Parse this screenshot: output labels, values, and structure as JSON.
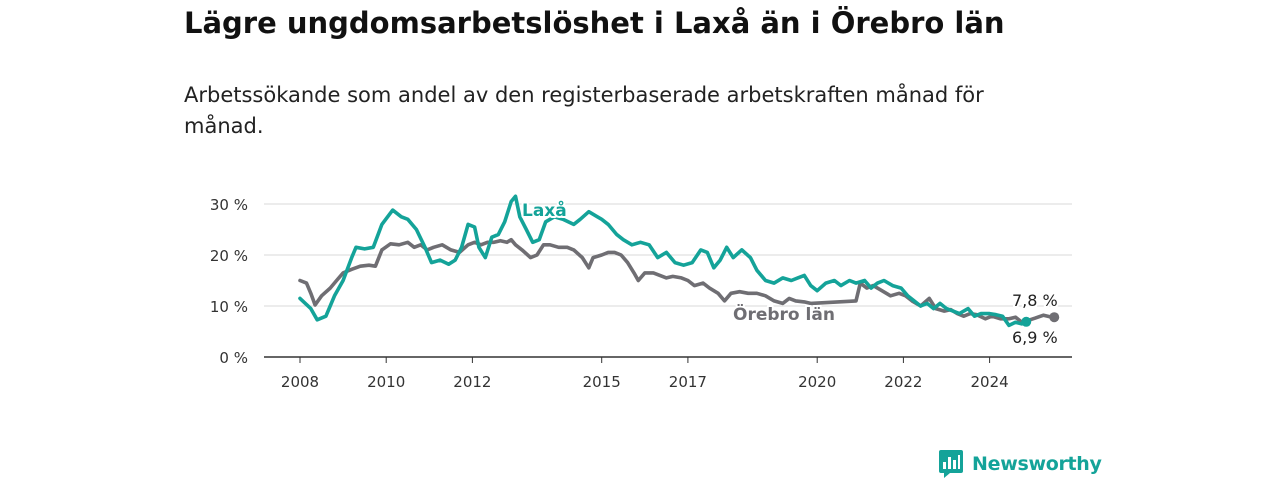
{
  "title": "Lägre ungdomsarbetslöshet i Laxå än i Örebro län",
  "subtitle": "Arbetssökande som andel av den registerbaserade arbetskraften månad för månad.",
  "brand": {
    "name": "Newsworthy",
    "icon": "newsworthy-logo-icon",
    "color": "#14a399"
  },
  "chart_data": {
    "type": "line",
    "title": "Lägre ungdomsarbetslöshet i Laxå än i Örebro län",
    "subtitle": "Arbetssökande som andel av den registerbaserade arbetskraften månad för månad.",
    "xlabel": "",
    "ylabel": "",
    "xlim": [
      2007.5,
      2025.75
    ],
    "ylim": [
      0,
      30
    ],
    "x_ticks": [
      2008,
      2010,
      2012,
      2015,
      2017,
      2020,
      2022,
      2024
    ],
    "y_ticks": [
      0,
      10,
      20,
      30
    ],
    "y_tick_labels": [
      "0 %",
      "10 %",
      "20 %",
      "30 %"
    ],
    "grid": "horizontal",
    "legend": "inline labels",
    "series": [
      {
        "name": "Laxå",
        "color": "#14a399",
        "end_label": "6,9 %",
        "points": [
          [
            2008.0,
            11.5
          ],
          [
            2008.25,
            9.5
          ],
          [
            2008.4,
            7.3
          ],
          [
            2008.6,
            8.0
          ],
          [
            2008.8,
            12.0
          ],
          [
            2009.0,
            15.0
          ],
          [
            2009.2,
            19.5
          ],
          [
            2009.3,
            21.5
          ],
          [
            2009.5,
            21.2
          ],
          [
            2009.7,
            21.5
          ],
          [
            2009.9,
            26.0
          ],
          [
            2010.15,
            28.8
          ],
          [
            2010.35,
            27.5
          ],
          [
            2010.5,
            27.0
          ],
          [
            2010.7,
            25.0
          ],
          [
            2010.9,
            21.5
          ],
          [
            2011.05,
            18.5
          ],
          [
            2011.25,
            19.0
          ],
          [
            2011.45,
            18.2
          ],
          [
            2011.6,
            19.0
          ],
          [
            2011.75,
            21.5
          ],
          [
            2011.9,
            26.0
          ],
          [
            2012.05,
            25.5
          ],
          [
            2012.15,
            21.5
          ],
          [
            2012.3,
            19.5
          ],
          [
            2012.45,
            23.5
          ],
          [
            2012.6,
            24.0
          ],
          [
            2012.75,
            26.5
          ],
          [
            2012.9,
            30.5
          ],
          [
            2013.0,
            31.5
          ],
          [
            2013.1,
            27.5
          ],
          [
            2013.25,
            25.0
          ],
          [
            2013.4,
            22.5
          ],
          [
            2013.55,
            23.0
          ],
          [
            2013.7,
            26.5
          ],
          [
            2013.9,
            27.5
          ],
          [
            2014.1,
            27.0
          ],
          [
            2014.35,
            26.0
          ],
          [
            2014.5,
            27.0
          ],
          [
            2014.7,
            28.5
          ],
          [
            2014.9,
            27.5
          ],
          [
            2015.0,
            27.0
          ],
          [
            2015.15,
            26.0
          ],
          [
            2015.35,
            24.0
          ],
          [
            2015.5,
            23.0
          ],
          [
            2015.7,
            22.0
          ],
          [
            2015.9,
            22.5
          ],
          [
            2016.1,
            22.0
          ],
          [
            2016.3,
            19.5
          ],
          [
            2016.5,
            20.5
          ],
          [
            2016.7,
            18.5
          ],
          [
            2016.9,
            18.0
          ],
          [
            2017.1,
            18.5
          ],
          [
            2017.3,
            21.0
          ],
          [
            2017.45,
            20.5
          ],
          [
            2017.6,
            17.5
          ],
          [
            2017.75,
            19.0
          ],
          [
            2017.9,
            21.5
          ],
          [
            2018.05,
            19.5
          ],
          [
            2018.25,
            21.0
          ],
          [
            2018.45,
            19.5
          ],
          [
            2018.6,
            17.0
          ],
          [
            2018.8,
            15.0
          ],
          [
            2019.0,
            14.5
          ],
          [
            2019.2,
            15.5
          ],
          [
            2019.4,
            15.0
          ],
          [
            2019.55,
            15.5
          ],
          [
            2019.7,
            16.0
          ],
          [
            2019.85,
            14.0
          ],
          [
            2020.0,
            13.0
          ],
          [
            2020.2,
            14.5
          ],
          [
            2020.4,
            15.0
          ],
          [
            2020.55,
            14.0
          ],
          [
            2020.75,
            15.0
          ],
          [
            2020.9,
            14.5
          ],
          [
            2021.1,
            15.0
          ],
          [
            2021.25,
            13.5
          ],
          [
            2021.4,
            14.5
          ],
          [
            2021.55,
            15.0
          ],
          [
            2021.75,
            14.0
          ],
          [
            2021.95,
            13.5
          ],
          [
            2022.1,
            12.0
          ],
          [
            2022.25,
            11.0
          ],
          [
            2022.4,
            10.0
          ],
          [
            2022.55,
            10.5
          ],
          [
            2022.7,
            9.5
          ],
          [
            2022.85,
            10.5
          ],
          [
            2023.0,
            9.5
          ],
          [
            2023.15,
            9.0
          ],
          [
            2023.3,
            8.5
          ],
          [
            2023.5,
            9.5
          ],
          [
            2023.65,
            8.0
          ],
          [
            2023.8,
            8.5
          ],
          [
            2023.9,
            8.5
          ],
          [
            2024.0,
            8.5
          ],
          [
            2024.15,
            8.3
          ],
          [
            2024.3,
            8.0
          ],
          [
            2024.45,
            6.2
          ],
          [
            2024.6,
            6.8
          ],
          [
            2024.75,
            6.5
          ],
          [
            2024.85,
            6.9
          ]
        ]
      },
      {
        "name": "Örebro län",
        "color": "#6f6e73",
        "end_label": "7,8 %",
        "points": [
          [
            2008.0,
            15.0
          ],
          [
            2008.15,
            14.5
          ],
          [
            2008.25,
            12.5
          ],
          [
            2008.35,
            10.2
          ],
          [
            2008.5,
            12.0
          ],
          [
            2008.7,
            13.5
          ],
          [
            2008.85,
            15.0
          ],
          [
            2009.0,
            16.5
          ],
          [
            2009.2,
            17.2
          ],
          [
            2009.4,
            17.8
          ],
          [
            2009.6,
            18.0
          ],
          [
            2009.75,
            17.8
          ],
          [
            2009.9,
            21.0
          ],
          [
            2010.1,
            22.2
          ],
          [
            2010.3,
            22.0
          ],
          [
            2010.5,
            22.5
          ],
          [
            2010.65,
            21.5
          ],
          [
            2010.8,
            22.0
          ],
          [
            2010.95,
            21.0
          ],
          [
            2011.1,
            21.5
          ],
          [
            2011.3,
            22.0
          ],
          [
            2011.5,
            21.0
          ],
          [
            2011.7,
            20.5
          ],
          [
            2011.9,
            22.0
          ],
          [
            2012.05,
            22.5
          ],
          [
            2012.2,
            22.0
          ],
          [
            2012.35,
            22.5
          ],
          [
            2012.5,
            22.5
          ],
          [
            2012.65,
            22.8
          ],
          [
            2012.8,
            22.5
          ],
          [
            2012.9,
            23.0
          ],
          [
            2013.0,
            22.0
          ],
          [
            2013.15,
            21.0
          ],
          [
            2013.35,
            19.5
          ],
          [
            2013.5,
            20.0
          ],
          [
            2013.65,
            22.0
          ],
          [
            2013.8,
            22.0
          ],
          [
            2014.0,
            21.5
          ],
          [
            2014.2,
            21.5
          ],
          [
            2014.35,
            21.0
          ],
          [
            2014.55,
            19.5
          ],
          [
            2014.7,
            17.5
          ],
          [
            2014.8,
            19.5
          ],
          [
            2015.0,
            20.0
          ],
          [
            2015.15,
            20.5
          ],
          [
            2015.3,
            20.5
          ],
          [
            2015.45,
            20.0
          ],
          [
            2015.6,
            18.5
          ],
          [
            2015.75,
            16.5
          ],
          [
            2015.85,
            15.0
          ],
          [
            2016.0,
            16.5
          ],
          [
            2016.2,
            16.5
          ],
          [
            2016.35,
            16.0
          ],
          [
            2016.5,
            15.5
          ],
          [
            2016.65,
            15.8
          ],
          [
            2016.85,
            15.5
          ],
          [
            2017.0,
            15.0
          ],
          [
            2017.15,
            14.0
          ],
          [
            2017.35,
            14.5
          ],
          [
            2017.5,
            13.5
          ],
          [
            2017.7,
            12.5
          ],
          [
            2017.85,
            11.0
          ],
          [
            2018.0,
            12.5
          ],
          [
            2018.2,
            12.8
          ],
          [
            2018.4,
            12.5
          ],
          [
            2018.6,
            12.5
          ],
          [
            2018.8,
            12.0
          ],
          [
            2019.0,
            11.0
          ],
          [
            2019.2,
            10.5
          ],
          [
            2019.35,
            11.5
          ],
          [
            2019.5,
            11.0
          ],
          [
            2019.7,
            10.8
          ],
          [
            2019.85,
            10.5
          ],
          [
            2020.9,
            11.0
          ],
          [
            2021.0,
            14.5
          ],
          [
            2021.15,
            13.5
          ],
          [
            2021.3,
            14.0
          ],
          [
            2021.5,
            13.0
          ],
          [
            2021.7,
            12.0
          ],
          [
            2021.9,
            12.5
          ],
          [
            2022.05,
            12.0
          ],
          [
            2022.2,
            11.0
          ],
          [
            2022.4,
            10.0
          ],
          [
            2022.6,
            11.5
          ],
          [
            2022.75,
            9.5
          ],
          [
            2022.95,
            9.0
          ],
          [
            2023.1,
            9.3
          ],
          [
            2023.25,
            8.5
          ],
          [
            2023.4,
            8.0
          ],
          [
            2023.55,
            8.5
          ],
          [
            2023.7,
            8.3
          ],
          [
            2023.9,
            7.5
          ],
          [
            2024.05,
            8.0
          ],
          [
            2024.25,
            7.5
          ],
          [
            2024.45,
            7.5
          ],
          [
            2024.6,
            7.8
          ],
          [
            2024.75,
            6.8
          ],
          [
            2024.9,
            7.2
          ],
          [
            2025.05,
            7.6
          ],
          [
            2025.25,
            8.2
          ],
          [
            2025.4,
            7.9
          ],
          [
            2025.5,
            7.8
          ]
        ]
      }
    ]
  }
}
